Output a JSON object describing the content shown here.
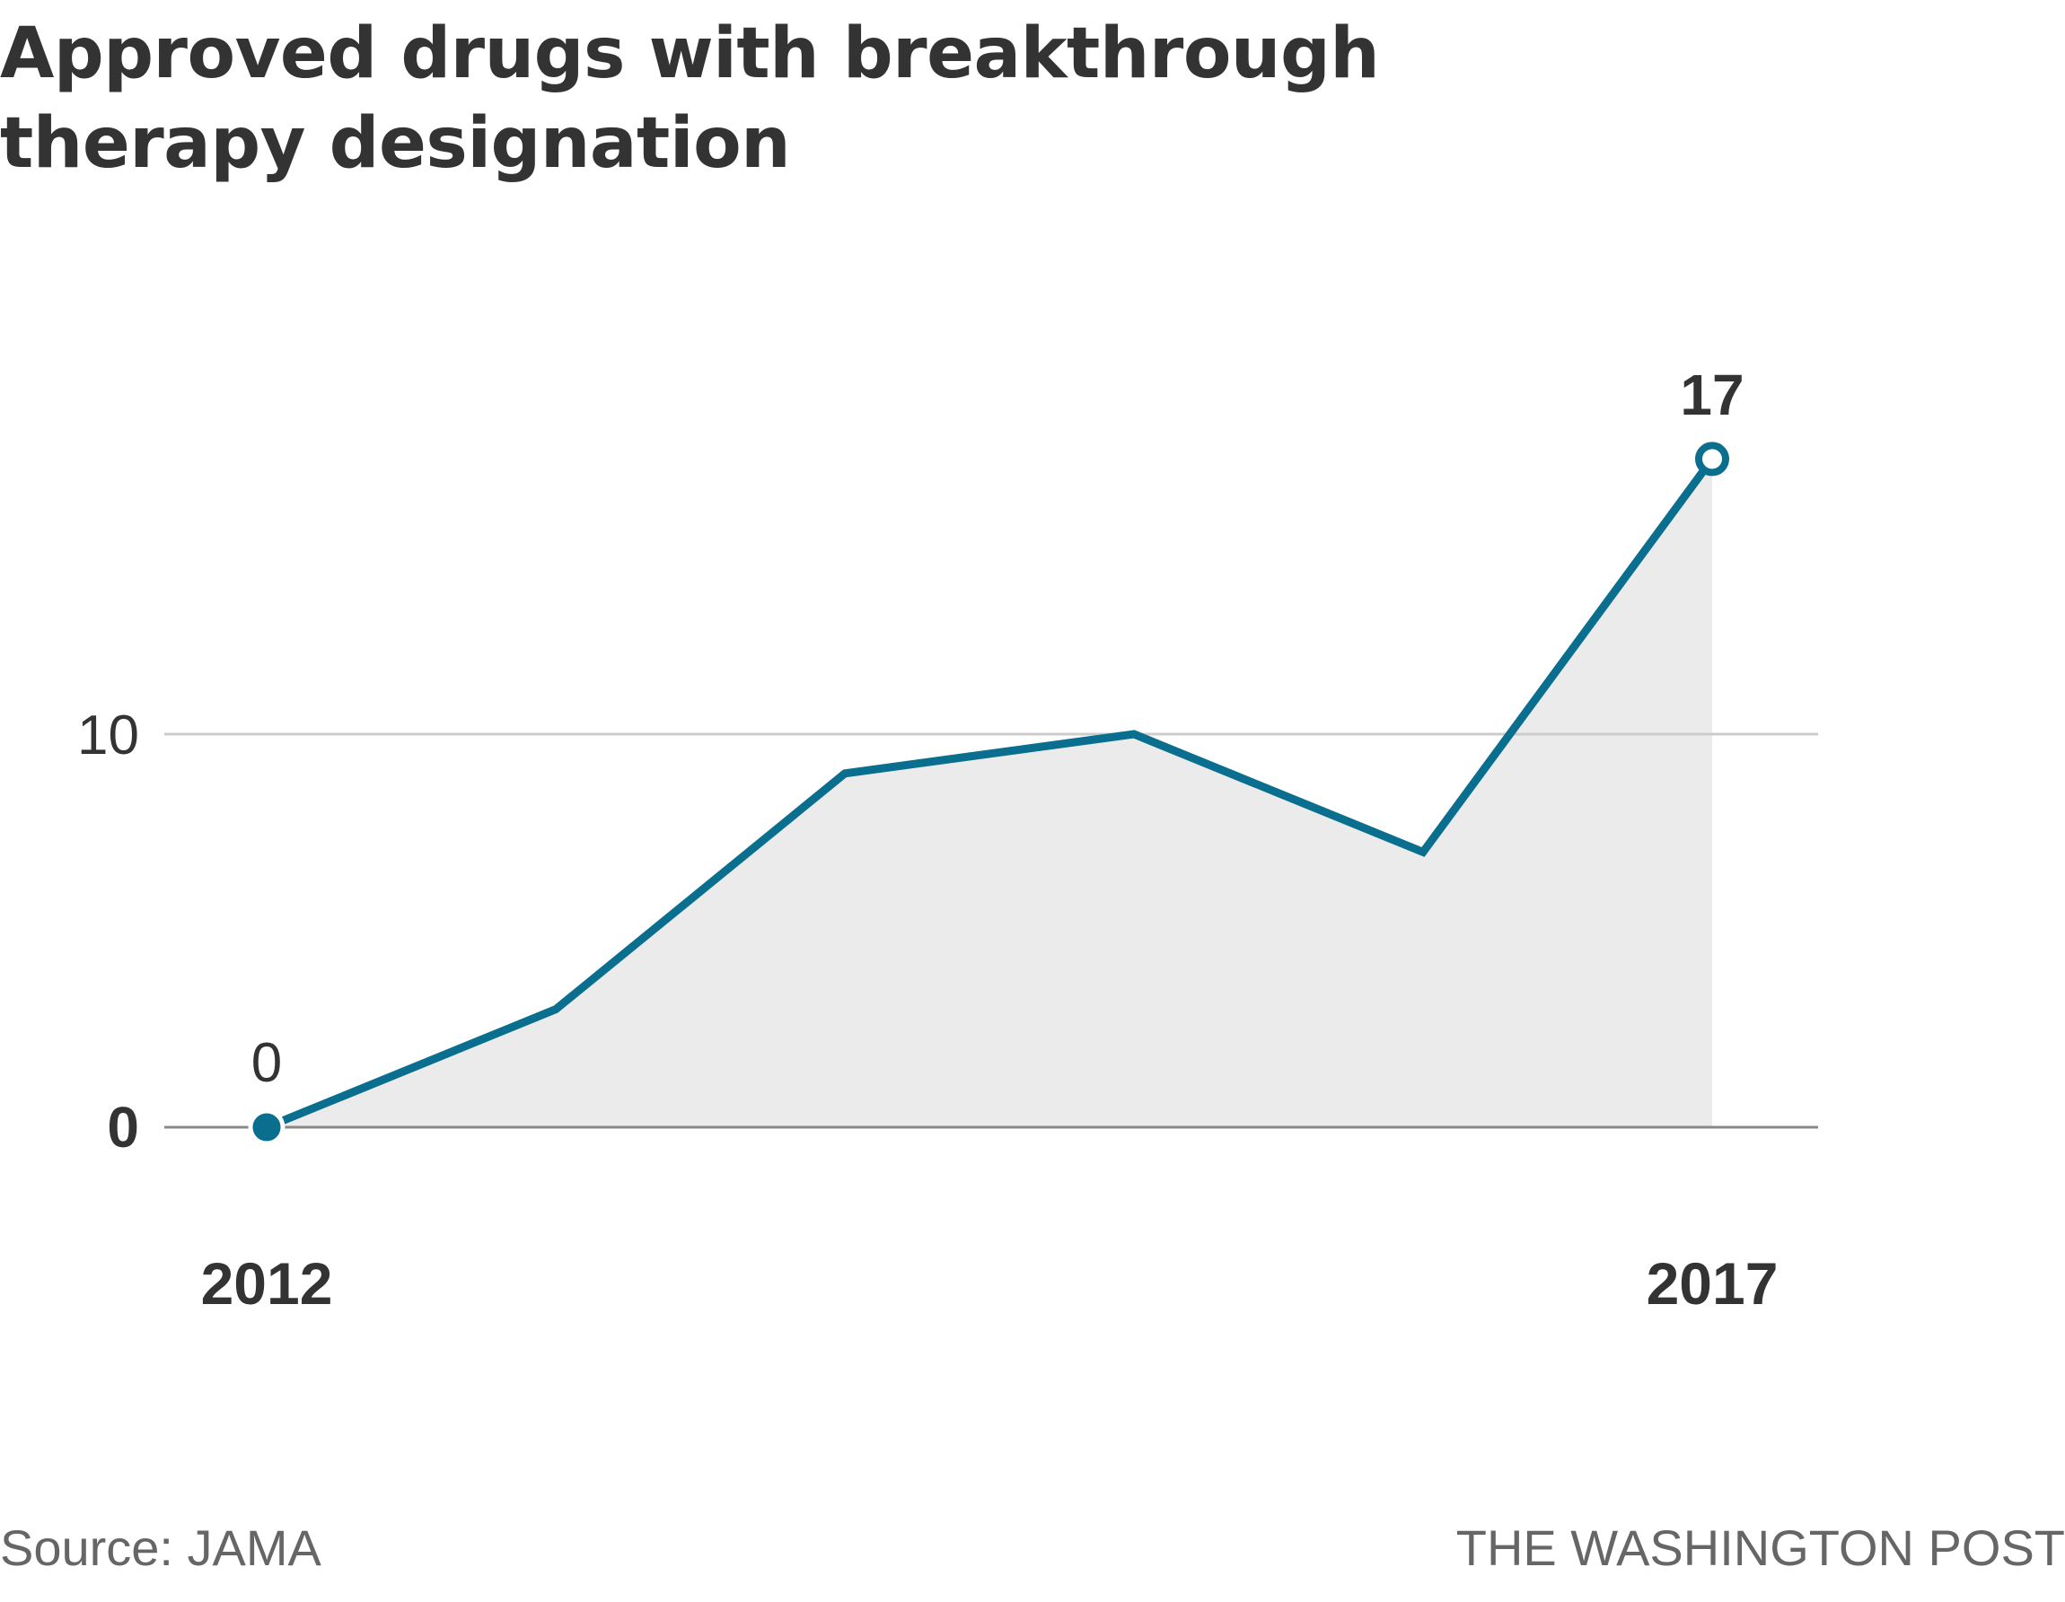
{
  "chart_data": {
    "type": "area",
    "title": "Approved drugs with breakthrough therapy designation",
    "x": [
      2012,
      2013,
      2014,
      2015,
      2016,
      2017
    ],
    "x_tick_labels": [
      "2012",
      "2017"
    ],
    "series": [
      {
        "values": [
          0,
          3,
          9,
          10,
          7,
          17
        ]
      }
    ],
    "ylim": [
      0,
      17
    ],
    "y_ticks": [
      0,
      10
    ],
    "y_tick_labels": [
      "0",
      "10"
    ],
    "grid": true,
    "annotations": {
      "start_label": "0",
      "end_label": "17"
    },
    "colors": {
      "line": "#0a6e8f",
      "area": "#ebebeb",
      "grid": "#cccccc",
      "baseline": "#888888"
    }
  },
  "footer": {
    "source": "Source: JAMA",
    "credit": "THE WASHINGTON POST"
  }
}
